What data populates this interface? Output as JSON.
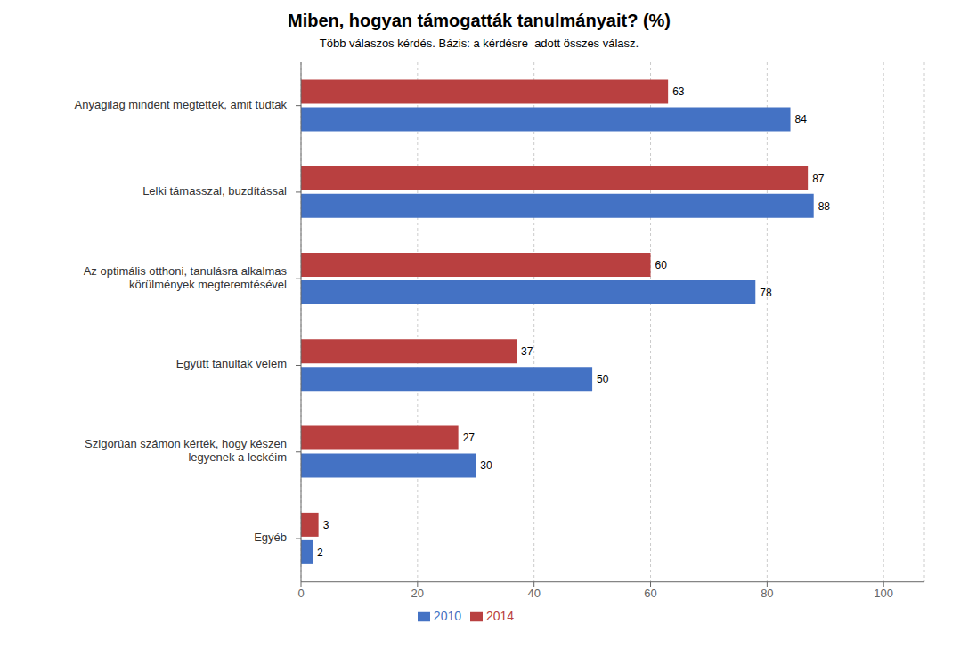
{
  "chart_data": {
    "type": "bar",
    "orientation": "horizontal",
    "title": "Miben, hogyan támogatták tanulmányait? (%)",
    "subtitle": "Több válaszos kérdés. Bázis: a kérdésre  adott összes válasz.",
    "categories": [
      "Anyagilag mindent megtettek, amit tudtak",
      "Lelki támasszal, buzdítással",
      "Az optimális otthoni, tanulásra alkalmas\nkörülmények megteremtésével",
      "Együtt tanultak velem",
      "Szigorúan számon kérték, hogy készen\nlegyenek a leckéim",
      "Egyéb"
    ],
    "series": [
      {
        "name": "2014",
        "color": "#b94040",
        "values": [
          63,
          87,
          60,
          37,
          27,
          3
        ]
      },
      {
        "name": "2010",
        "color": "#4472c4",
        "values": [
          84,
          88,
          78,
          50,
          30,
          2
        ]
      }
    ],
    "xlim": [
      0,
      107
    ],
    "xticks": [
      0,
      20,
      40,
      60,
      80,
      100
    ],
    "grid": true,
    "legend": "bottom",
    "data_labels": true
  }
}
